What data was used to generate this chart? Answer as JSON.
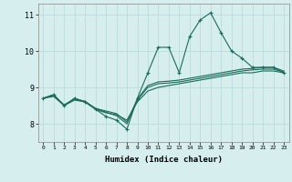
{
  "xlabel": "Humidex (Indice chaleur)",
  "xlim": [
    -0.5,
    23.5
  ],
  "ylim": [
    7.5,
    11.3
  ],
  "xticks": [
    0,
    1,
    2,
    3,
    4,
    5,
    6,
    7,
    8,
    9,
    10,
    11,
    12,
    13,
    14,
    15,
    16,
    17,
    18,
    19,
    20,
    21,
    22,
    23
  ],
  "yticks": [
    8,
    9,
    10,
    11
  ],
  "background_color": "#d6eeee",
  "grid_color": "#b8d8d8",
  "line_color": "#1a6b5a",
  "lines": [
    {
      "x": [
        0,
        1,
        2,
        3,
        4,
        5,
        6,
        7,
        8,
        9,
        10,
        11,
        12,
        13,
        14,
        15,
        16,
        17,
        18,
        19,
        20,
        21,
        22,
        23
      ],
      "y": [
        8.7,
        8.8,
        8.5,
        8.7,
        8.6,
        8.4,
        8.2,
        8.1,
        7.85,
        8.7,
        9.4,
        10.1,
        10.1,
        9.4,
        10.4,
        10.85,
        11.05,
        10.5,
        10.0,
        9.8,
        9.55,
        9.55,
        9.55,
        9.4
      ],
      "marker": "+"
    },
    {
      "x": [
        0,
        1,
        2,
        3,
        4,
        5,
        6,
        7,
        8,
        9,
        10,
        11,
        12,
        13,
        14,
        15,
        16,
        17,
        18,
        19,
        20,
        21,
        22,
        23
      ],
      "y": [
        8.7,
        8.75,
        8.5,
        8.65,
        8.6,
        8.4,
        8.3,
        8.25,
        8.1,
        8.6,
        8.9,
        9.0,
        9.05,
        9.1,
        9.15,
        9.2,
        9.25,
        9.3,
        9.35,
        9.4,
        9.4,
        9.45,
        9.45,
        9.4
      ],
      "marker": null
    },
    {
      "x": [
        0,
        1,
        2,
        3,
        4,
        5,
        6,
        7,
        8,
        9,
        10,
        11,
        12,
        13,
        14,
        15,
        16,
        17,
        18,
        19,
        20,
        21,
        22,
        23
      ],
      "y": [
        8.7,
        8.78,
        8.52,
        8.68,
        8.62,
        8.42,
        8.32,
        8.22,
        8.0,
        8.65,
        9.0,
        9.1,
        9.12,
        9.15,
        9.2,
        9.25,
        9.3,
        9.35,
        9.4,
        9.45,
        9.48,
        9.5,
        9.5,
        9.42
      ],
      "marker": null
    },
    {
      "x": [
        0,
        1,
        2,
        3,
        4,
        5,
        6,
        7,
        8,
        9,
        10,
        11,
        12,
        13,
        14,
        15,
        16,
        17,
        18,
        19,
        20,
        21,
        22,
        23
      ],
      "y": [
        8.7,
        8.8,
        8.5,
        8.7,
        8.6,
        8.42,
        8.35,
        8.28,
        8.05,
        8.68,
        9.05,
        9.15,
        9.17,
        9.2,
        9.25,
        9.3,
        9.35,
        9.4,
        9.45,
        9.5,
        9.52,
        9.55,
        9.55,
        9.45
      ],
      "marker": null
    }
  ]
}
